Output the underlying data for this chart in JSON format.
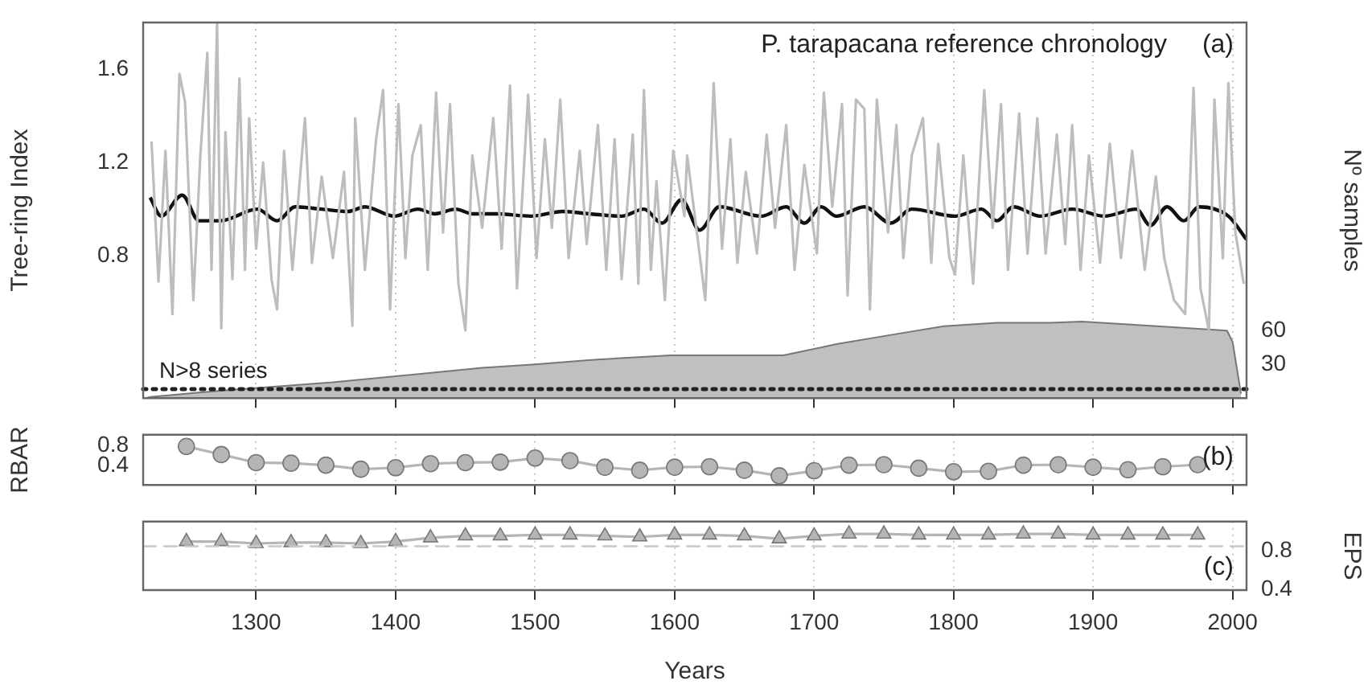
{
  "chart_data": [
    {
      "type": "line",
      "title": "P. tarapacana reference chronology",
      "ylabel": "Tree-ring Index",
      "y2label": "Nº samples",
      "annotations": [
        "(a)"
      ],
      "xlim": [
        1219,
        2010
      ],
      "xticks": [
        1300,
        1400,
        1500,
        1600,
        1700,
        1800,
        1900,
        2000
      ],
      "ylim": [
        0.19,
        1.8
      ],
      "yticks": [
        0.8,
        1.2,
        1.6
      ],
      "y2lim": [
        0,
        334
      ],
      "y2ticks": [
        30,
        60
      ],
      "tick_labels": "y",
      "grid": "x",
      "marker": "none",
      "ref_lines": [
        {
          "axis": "y2",
          "value": 8,
          "label": "N>8 series",
          "color": "#222222",
          "line_style": "dotted"
        }
      ],
      "series": [
        {
          "type": "area",
          "axis": "y2",
          "color": "#c0c0c0",
          "x": [
            1221,
            1224,
            1278,
            1355,
            1462,
            1500,
            1540,
            1597,
            1678,
            1716,
            1754,
            1793,
            1831,
            1869,
            1892,
            1946,
            1996,
            2000,
            2006
          ],
          "values": [
            0,
            1,
            7,
            14,
            27,
            30,
            34,
            38,
            38,
            48,
            56,
            64,
            67,
            67,
            68,
            64,
            60,
            50,
            4
          ]
        },
        {
          "type": "line",
          "color": "#bdbdbd",
          "x": [
            1225,
            1230,
            1235,
            1240,
            1245,
            1249,
            1255,
            1260,
            1265,
            1268,
            1272,
            1275,
            1278,
            1283,
            1288,
            1292,
            1295,
            1300,
            1305,
            1311,
            1315,
            1320,
            1326,
            1335,
            1340,
            1347,
            1355,
            1363,
            1369,
            1371,
            1378,
            1386,
            1391,
            1396,
            1402,
            1407,
            1412,
            1418,
            1423,
            1429,
            1434,
            1439,
            1445,
            1450,
            1455,
            1462,
            1470,
            1476,
            1482,
            1487,
            1495,
            1501,
            1507,
            1512,
            1518,
            1524,
            1532,
            1537,
            1545,
            1551,
            1557,
            1562,
            1570,
            1574,
            1578,
            1583,
            1587,
            1593,
            1599,
            1607,
            1609,
            1617,
            1622,
            1628,
            1634,
            1640,
            1645,
            1651,
            1659,
            1666,
            1672,
            1680,
            1686,
            1693,
            1702,
            1707,
            1713,
            1720,
            1724,
            1730,
            1736,
            1740,
            1745,
            1753,
            1759,
            1764,
            1770,
            1778,
            1784,
            1789,
            1797,
            1801,
            1807,
            1814,
            1822,
            1828,
            1834,
            1839,
            1847,
            1853,
            1860,
            1866,
            1874,
            1880,
            1885,
            1891,
            1897,
            1905,
            1912,
            1920,
            1928,
            1937,
            1945,
            1951,
            1958,
            1966,
            1972,
            1977,
            1983,
            1987,
            1993,
            1997,
            2002,
            2008
          ],
          "values": [
            1.29,
            0.69,
            1.25,
            0.55,
            1.58,
            1.46,
            0.61,
            1.23,
            1.67,
            0.74,
            1.8,
            0.49,
            1.33,
            0.7,
            1.56,
            0.74,
            1.39,
            0.83,
            1.2,
            0.7,
            0.57,
            1.25,
            0.74,
            1.39,
            0.77,
            1.14,
            0.79,
            1.16,
            0.5,
            1.39,
            0.74,
            1.3,
            1.51,
            0.57,
            1.45,
            0.79,
            1.23,
            1.36,
            0.74,
            1.5,
            0.9,
            1.45,
            0.68,
            0.48,
            1.23,
            0.92,
            1.39,
            0.83,
            1.53,
            0.66,
            1.49,
            0.79,
            1.3,
            0.92,
            1.47,
            0.79,
            1.25,
            0.85,
            1.36,
            0.74,
            1.3,
            0.7,
            1.32,
            0.68,
            1.51,
            0.74,
            1.12,
            0.61,
            1.25,
            0.97,
            1.23,
            0.85,
            0.61,
            1.54,
            0.83,
            1.3,
            0.77,
            1.16,
            0.81,
            1.32,
            0.92,
            1.36,
            0.74,
            1.19,
            0.81,
            1.5,
            1.01,
            1.45,
            0.63,
            1.47,
            1.43,
            0.57,
            1.47,
            0.9,
            1.36,
            0.79,
            1.23,
            1.39,
            0.77,
            1.28,
            0.79,
            0.72,
            1.23,
            0.68,
            1.51,
            0.92,
            1.45,
            0.74,
            1.41,
            0.81,
            1.39,
            0.81,
            1.32,
            0.85,
            1.36,
            0.74,
            1.23,
            0.77,
            1.28,
            0.79,
            1.25,
            0.74,
            1.14,
            0.79,
            0.61,
            0.55,
            1.52,
            0.66,
            0.48,
            1.47,
            0.79,
            1.54,
            0.9,
            0.68
          ]
        },
        {
          "type": "line",
          "color": "#111111",
          "x": [
            1224,
            1232,
            1247,
            1259,
            1274,
            1301,
            1315,
            1328,
            1347,
            1366,
            1378,
            1399,
            1416,
            1428,
            1443,
            1455,
            1472,
            1497,
            1520,
            1539,
            1562,
            1578,
            1591,
            1605,
            1618,
            1632,
            1662,
            1680,
            1693,
            1705,
            1716,
            1736,
            1755,
            1770,
            1801,
            1820,
            1831,
            1843,
            1862,
            1885,
            1908,
            1931,
            1941,
            1953,
            1965,
            1976,
            1997,
            2010
          ],
          "values": [
            1.05,
            0.97,
            1.06,
            0.95,
            0.95,
            1.0,
            0.95,
            1.01,
            1.0,
            0.99,
            1.01,
            0.97,
            1.0,
            0.98,
            1.0,
            0.98,
            0.98,
            0.97,
            0.99,
            0.98,
            0.97,
            1.0,
            0.94,
            1.04,
            0.91,
            1.01,
            0.97,
            1.01,
            0.94,
            1.01,
            0.97,
            1.01,
            0.94,
            1.0,
            0.97,
            1.0,
            0.95,
            1.01,
            0.97,
            1.0,
            0.97,
            1.0,
            0.93,
            1.01,
            0.95,
            1.01,
            0.97,
            0.87
          ]
        }
      ]
    },
    {
      "type": "line",
      "ylabel": "RBAR",
      "annotations": [
        "(b)"
      ],
      "xlim": [
        1219,
        2010
      ],
      "xticks": [
        1300,
        1400,
        1500,
        1600,
        1700,
        1800,
        1900,
        2000
      ],
      "ylim": [
        0.02,
        1.01
      ],
      "yticks": [
        0.4,
        0.8
      ],
      "tick_labels": "y",
      "grid": "x",
      "marker": "circle",
      "series": [
        {
          "color": "#b5b5b5",
          "x": [
            1250,
            1275,
            1300,
            1325,
            1350,
            1375,
            1400,
            1425,
            1450,
            1475,
            1500,
            1525,
            1550,
            1575,
            1600,
            1625,
            1650,
            1675,
            1700,
            1725,
            1750,
            1775,
            1800,
            1825,
            1850,
            1875,
            1900,
            1925,
            1950,
            1975
          ],
          "values": [
            0.78,
            0.62,
            0.46,
            0.45,
            0.41,
            0.33,
            0.36,
            0.44,
            0.46,
            0.47,
            0.55,
            0.5,
            0.37,
            0.31,
            0.37,
            0.38,
            0.31,
            0.2,
            0.3,
            0.41,
            0.42,
            0.35,
            0.28,
            0.29,
            0.41,
            0.42,
            0.37,
            0.32,
            0.38,
            0.42
          ]
        }
      ]
    },
    {
      "type": "line",
      "xlabel": "Years",
      "y2label": "EPS",
      "annotations": [
        "(c)"
      ],
      "xlim": [
        1219,
        2010
      ],
      "xticks": [
        1300,
        1400,
        1500,
        1600,
        1700,
        1800,
        1900,
        2000
      ],
      "y2lim": [
        0.39,
        1.11
      ],
      "y2ticks": [
        0.4,
        0.8
      ],
      "grid": "x",
      "marker": "triangle",
      "ref_lines": [
        {
          "axis": "y2",
          "value": 0.85,
          "color": "#c8c8c8",
          "line_style": "dashed"
        }
      ],
      "series": [
        {
          "axis": "y2",
          "color": "#b5b5b5",
          "x": [
            1250,
            1275,
            1300,
            1325,
            1350,
            1375,
            1400,
            1425,
            1450,
            1475,
            1500,
            1525,
            1550,
            1575,
            1600,
            1625,
            1650,
            1675,
            1700,
            1725,
            1750,
            1775,
            1800,
            1825,
            1850,
            1875,
            1900,
            1925,
            1950,
            1975
          ],
          "values": [
            0.9,
            0.9,
            0.88,
            0.89,
            0.89,
            0.88,
            0.9,
            0.94,
            0.96,
            0.96,
            0.97,
            0.97,
            0.96,
            0.95,
            0.97,
            0.97,
            0.96,
            0.93,
            0.96,
            0.98,
            0.98,
            0.97,
            0.97,
            0.97,
            0.98,
            0.98,
            0.97,
            0.97,
            0.97,
            0.97
          ]
        }
      ]
    }
  ]
}
